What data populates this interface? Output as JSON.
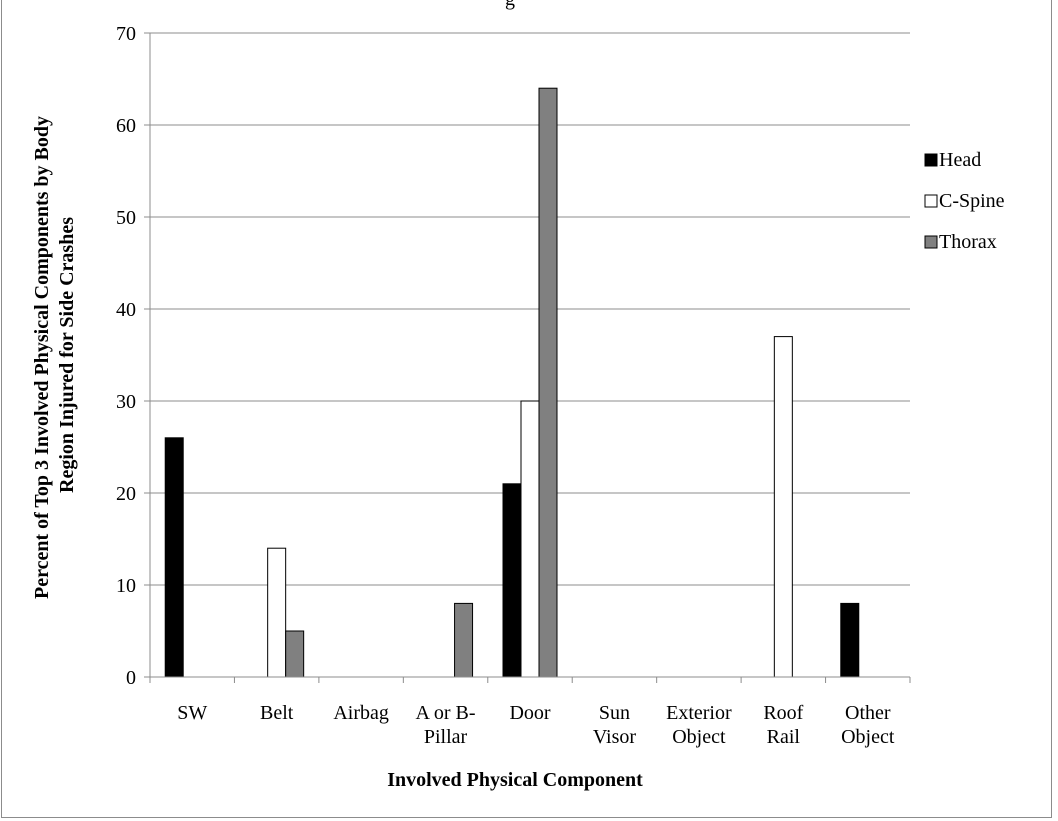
{
  "chart_data": {
    "type": "bar",
    "title_fragment": "g",
    "xlabel": "Involved Physical Component",
    "ylabel": [
      "Percent of Top 3 Involved Physical Components by Body",
      "Region Injured for Side Crashes"
    ],
    "ylim": [
      0,
      70
    ],
    "yticks": [
      0,
      10,
      20,
      30,
      40,
      50,
      60,
      70
    ],
    "grid": true,
    "legend_position": "right",
    "categories": [
      [
        "SW"
      ],
      [
        "Belt"
      ],
      [
        "Airbag"
      ],
      [
        "A or B-",
        "Pillar"
      ],
      [
        "Door"
      ],
      [
        "Sun",
        "Visor"
      ],
      [
        "Exterior",
        "Object"
      ],
      [
        "Roof",
        "Rail"
      ],
      [
        "Other",
        "Object"
      ]
    ],
    "series": [
      {
        "name": "Head",
        "color": "#000000",
        "values": [
          26,
          0,
          0,
          0,
          21,
          0,
          0,
          0,
          8
        ]
      },
      {
        "name": "C-Spine",
        "color": "#ffffff",
        "values": [
          0,
          14,
          0,
          0,
          30,
          0,
          0,
          37,
          0
        ]
      },
      {
        "name": "Thorax",
        "color": "#808080",
        "values": [
          0,
          5,
          0,
          8,
          64,
          0,
          0,
          0,
          0
        ]
      }
    ]
  }
}
